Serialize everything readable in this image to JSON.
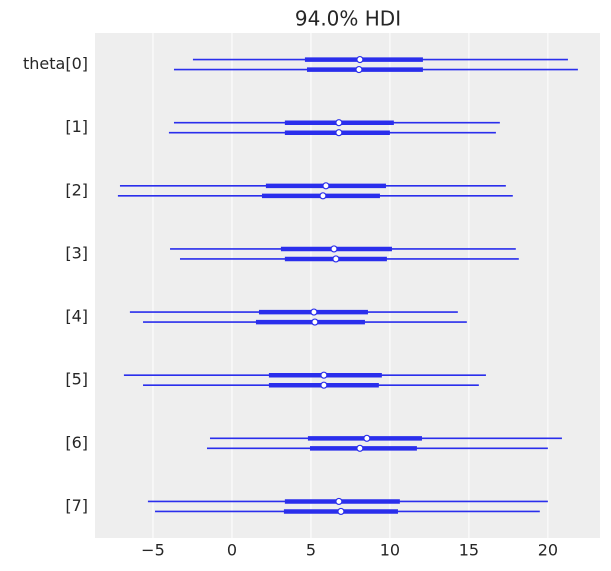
{
  "chart_data": {
    "type": "forest",
    "title": "94.0% HDI",
    "categories": [
      "theta[0]",
      "[1]",
      "[2]",
      "[3]",
      "[4]",
      "[5]",
      "[6]",
      "[7]"
    ],
    "color": "#2a2eec",
    "chains": [
      {
        "hdi": [
          [
            -2.47,
            21.27
          ],
          [
            -3.67,
            16.96
          ],
          [
            -7.09,
            17.34
          ],
          [
            -3.92,
            17.97
          ],
          [
            -6.46,
            14.3
          ],
          [
            -6.84,
            16.08
          ],
          [
            -1.39,
            20.89
          ],
          [
            -5.32,
            20.0
          ]
        ],
        "quartiles": [
          [
            4.62,
            12.09
          ],
          [
            3.35,
            10.25
          ],
          [
            2.15,
            9.75
          ],
          [
            3.1,
            10.13
          ],
          [
            1.71,
            8.61
          ],
          [
            2.34,
            9.49
          ],
          [
            4.81,
            12.03
          ],
          [
            3.35,
            10.63
          ]
        ],
        "median": [
          8.1,
          6.77,
          5.95,
          6.46,
          5.19,
          5.82,
          8.54,
          6.77
        ]
      },
      {
        "hdi": [
          [
            -3.67,
            21.9
          ],
          [
            -3.99,
            16.71
          ],
          [
            -7.22,
            17.78
          ],
          [
            -3.29,
            18.16
          ],
          [
            -5.63,
            14.87
          ],
          [
            -5.63,
            15.63
          ],
          [
            -1.58,
            20.0
          ],
          [
            -4.87,
            19.49
          ]
        ],
        "quartiles": [
          [
            4.75,
            12.09
          ],
          [
            3.35,
            10.0
          ],
          [
            1.9,
            9.37
          ],
          [
            3.35,
            9.81
          ],
          [
            1.52,
            8.42
          ],
          [
            2.34,
            9.3
          ],
          [
            4.94,
            11.71
          ],
          [
            3.29,
            10.51
          ]
        ],
        "median": [
          8.04,
          6.77,
          5.76,
          6.58,
          5.25,
          5.82,
          8.1,
          6.9
        ]
      }
    ],
    "xlim": [
      -8.67,
      23.3
    ],
    "xticks": [
      {
        "value": -5,
        "label": "−5"
      },
      0,
      5,
      10,
      15,
      20
    ],
    "grid": true
  }
}
